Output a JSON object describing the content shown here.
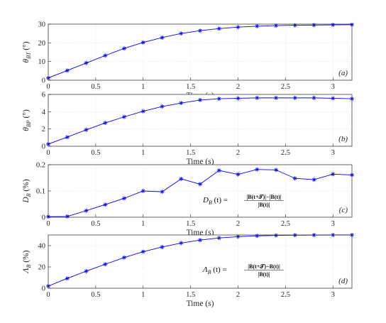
{
  "colors": {
    "series": "#0000ff",
    "axis": "#262626",
    "grid": "#dcdcdc"
  },
  "chart_data": [
    {
      "type": "line",
      "panel_label": "(a)",
      "xlabel": "Time (s)",
      "ylabel": "θ_BT (°)",
      "ylabel_parts": {
        "main": "θ",
        "sub": "BT",
        "unit": "(°)"
      },
      "xlim": [
        0,
        3.2
      ],
      "ylim": [
        0,
        30
      ],
      "xticks": [
        "0",
        "0.5",
        "1",
        "1.5",
        "2",
        "2.5",
        "3"
      ],
      "yticks": [
        "0",
        "10",
        "20",
        "30"
      ],
      "grid": true,
      "marker": "asterisk",
      "x": [
        0,
        0.2,
        0.4,
        0.6,
        0.8,
        1.0,
        1.2,
        1.4,
        1.6,
        1.8,
        2.0,
        2.2,
        2.4,
        2.6,
        2.8,
        3.0,
        3.2
      ],
      "y": [
        1.2,
        5.2,
        9.2,
        13.2,
        17.0,
        20.2,
        22.8,
        25.0,
        26.5,
        27.6,
        28.4,
        28.9,
        29.2,
        29.4,
        29.5,
        29.6,
        29.7
      ]
    },
    {
      "type": "line",
      "panel_label": "(b)",
      "xlabel": "Time (s)",
      "ylabel": "θ_BP (°)",
      "ylabel_parts": {
        "main": "θ",
        "sub": "BP",
        "unit": "(°)"
      },
      "xlim": [
        0,
        3.2
      ],
      "ylim": [
        0,
        6
      ],
      "xticks": [
        "0",
        "0.5",
        "1",
        "1.5",
        "2",
        "2.5",
        "3"
      ],
      "yticks": [
        "0",
        "2",
        "4",
        "6"
      ],
      "grid": true,
      "marker": "asterisk",
      "x": [
        0,
        0.2,
        0.4,
        0.6,
        0.8,
        1.0,
        1.2,
        1.4,
        1.6,
        1.8,
        2.0,
        2.2,
        2.4,
        2.6,
        2.8,
        3.0,
        3.2
      ],
      "y": [
        0.25,
        1.05,
        1.9,
        2.7,
        3.4,
        4.05,
        4.6,
        5.0,
        5.35,
        5.5,
        5.55,
        5.6,
        5.6,
        5.6,
        5.6,
        5.55,
        5.5
      ]
    },
    {
      "type": "line",
      "panel_label": "(c)",
      "xlabel": "Time (s)",
      "ylabel": "D_B (%)",
      "ylabel_parts": {
        "main": "D",
        "sub": "B",
        "unit": "(%)"
      },
      "xlim": [
        0,
        3.2
      ],
      "ylim": [
        0,
        0.2
      ],
      "xticks": [
        "0",
        "0.5",
        "1",
        "1.5",
        "2",
        "2.5",
        "3"
      ],
      "yticks": [
        "0",
        "0.1",
        "0.2"
      ],
      "grid": true,
      "marker": "asterisk",
      "annotation": {
        "lhs_main": "D",
        "lhs_sub": "B",
        "lhs_rest": " (t) = ",
        "numerator": "|B(t+𝒯)|−|B(t)|",
        "denominator": "|B(t)|"
      },
      "x": [
        0,
        0.2,
        0.4,
        0.6,
        0.8,
        1.0,
        1.2,
        1.4,
        1.6,
        1.8,
        2.0,
        2.2,
        2.4,
        2.6,
        2.8,
        3.0,
        3.2
      ],
      "y": [
        0.002,
        0.003,
        0.025,
        0.048,
        0.072,
        0.1,
        0.097,
        0.146,
        0.126,
        0.178,
        0.163,
        0.182,
        0.18,
        0.148,
        0.143,
        0.164,
        0.161
      ]
    },
    {
      "type": "line",
      "panel_label": "(d)",
      "xlabel": "Time (s)",
      "ylabel": "Λ_B (%)",
      "ylabel_parts": {
        "main": "Λ",
        "sub": "B",
        "unit": "(%)"
      },
      "xlim": [
        0,
        3.2
      ],
      "ylim": [
        0,
        50
      ],
      "xticks": [
        "0",
        "0.5",
        "1",
        "1.5",
        "2",
        "2.5",
        "3"
      ],
      "yticks": [
        "0",
        "20",
        "40"
      ],
      "grid": true,
      "marker": "asterisk",
      "annotation": {
        "lhs_main": "Λ",
        "lhs_sub": "B",
        "lhs_rest": " (t) = ",
        "numerator": "|B(t+𝒯)−B(t)|",
        "denominator": "|B(t)|"
      },
      "x": [
        0,
        0.2,
        0.4,
        0.6,
        0.8,
        1.0,
        1.2,
        1.4,
        1.6,
        1.8,
        2.0,
        2.2,
        2.4,
        2.6,
        2.8,
        3.0,
        3.2
      ],
      "y": [
        2.0,
        9.2,
        16.0,
        22.5,
        28.8,
        34.3,
        38.7,
        42.4,
        45.2,
        47.2,
        48.4,
        49.2,
        49.6,
        49.8,
        49.9,
        50.0,
        50.0
      ]
    }
  ]
}
